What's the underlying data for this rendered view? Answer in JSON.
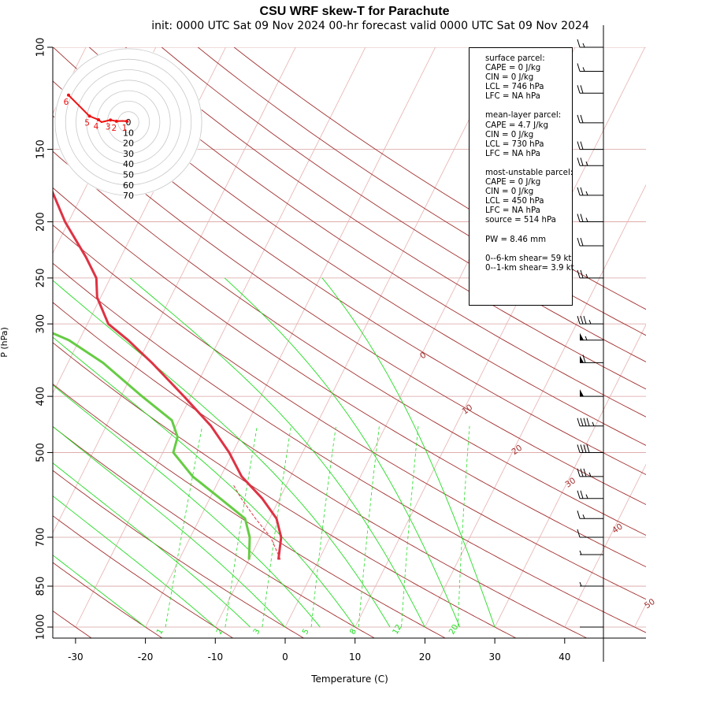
{
  "title": "CSU WRF skew-T for Parachute",
  "subtitle": "init: 0000 UTC Sat 09 Nov 2024    00-hr forecast valid 0000 UTC Sat 09 Nov 2024",
  "info": {
    "surface": [
      "surface parcel:",
      "CAPE = 0 J/kg",
      "CIN = 0 J/kg",
      "LCL = 746 hPa",
      "LFC = NA hPa"
    ],
    "mean_layer": [
      "mean-layer parcel:",
      "CAPE = 4.7 J/kg",
      "CIN = 0 J/kg",
      "LCL = 730 hPa",
      "LFC = NA hPa"
    ],
    "most_unstable": [
      "most-unstable parcel:",
      "CAPE = 0 J/kg",
      "CIN = 0 J/kg",
      "LCL = 450 hPa",
      "LFC = NA hPa",
      "source = 514 hPa"
    ],
    "pw": "PW =  8.46 mm",
    "shear": [
      "0--6-km shear= 59 kt",
      "0--1-km shear= 3.9 kt"
    ]
  },
  "chart_data": {
    "type": "line",
    "xlabel": "Temperature (C)",
    "ylabel": "P (hPa)",
    "xlim": [
      -33,
      44
    ],
    "ylim": [
      1000,
      100
    ],
    "y_scale": "log",
    "x_ticks": [
      -30,
      -20,
      -10,
      0,
      10,
      20,
      30,
      40
    ],
    "y_ticks": [
      100,
      150,
      200,
      250,
      300,
      400,
      500,
      700,
      850,
      1000
    ],
    "isotherm_labels": [
      "0",
      "10",
      "20",
      "30",
      "40",
      "50"
    ],
    "mixing_ratio_labels": [
      "1",
      "2",
      "3",
      "5",
      "8",
      "12",
      "20"
    ],
    "colors": {
      "temperature": "#dd3344",
      "dewpoint": "#66cc44",
      "parcel": "#dd3344",
      "isobar": "#d9a0a0",
      "isotherm": "#e8b0b0",
      "dry_adiabat": "#a33030",
      "moist_adiabat": "#22dd22",
      "mixing_ratio": "#22dd22",
      "hodograph": "#ee1111"
    },
    "series": [
      {
        "name": "temperature",
        "points": [
          [
            765,
            -5.8
          ],
          [
            700,
            -7.0
          ],
          [
            650,
            -9.0
          ],
          [
            600,
            -12.5
          ],
          [
            550,
            -17.0
          ],
          [
            500,
            -20.5
          ],
          [
            450,
            -25.0
          ],
          [
            400,
            -31.0
          ],
          [
            350,
            -38.0
          ],
          [
            320,
            -43.0
          ],
          [
            300,
            -47.0
          ],
          [
            270,
            -50.5
          ],
          [
            250,
            -52.0
          ],
          [
            230,
            -55.0
          ],
          [
            200,
            -60.5
          ],
          [
            180,
            -64.0
          ],
          [
            160,
            -68.0
          ],
          [
            145,
            -71.5
          ],
          [
            130,
            -73.0
          ],
          [
            120,
            -74.0
          ],
          [
            110,
            -77.0
          ],
          [
            105,
            -78.0
          ]
        ]
      },
      {
        "name": "dewpoint",
        "points": [
          [
            765,
            -10.0
          ],
          [
            700,
            -11.5
          ],
          [
            650,
            -13.5
          ],
          [
            600,
            -18.5
          ],
          [
            550,
            -24.0
          ],
          [
            500,
            -28.5
          ],
          [
            470,
            -29.0
          ],
          [
            440,
            -31.0
          ],
          [
            400,
            -37.0
          ],
          [
            350,
            -45.0
          ],
          [
            320,
            -51.5
          ],
          [
            300,
            -58.0
          ],
          [
            280,
            -68.0
          ],
          [
            265,
            -81.0
          ],
          [
            250,
            -76.0
          ],
          [
            230,
            -74.0
          ],
          [
            200,
            -75.0
          ],
          [
            180,
            -75.0
          ],
          [
            170,
            -76.0
          ],
          [
            150,
            -83.0
          ],
          [
            130,
            -89.0
          ],
          [
            120,
            -91.0
          ],
          [
            105,
            -98.0
          ]
        ]
      },
      {
        "name": "parcel",
        "points": [
          [
            765,
            -5.5
          ],
          [
            700,
            -8.5
          ],
          [
            650,
            -12.0
          ],
          [
            600,
            -15.5
          ],
          [
            570,
            -17.5
          ]
        ]
      }
    ],
    "wind_barbs": [
      {
        "p": 1000,
        "kt": 4
      },
      {
        "p": 850,
        "kt": 5
      },
      {
        "p": 750,
        "kt": 8
      },
      {
        "p": 700,
        "kt": 10
      },
      {
        "p": 650,
        "kt": 15
      },
      {
        "p": 600,
        "kt": 25
      },
      {
        "p": 550,
        "kt": 35
      },
      {
        "p": 500,
        "kt": 40
      },
      {
        "p": 450,
        "kt": 45
      },
      {
        "p": 400,
        "kt": 50
      },
      {
        "p": 350,
        "kt": 60
      },
      {
        "p": 320,
        "kt": 55
      },
      {
        "p": 300,
        "kt": 35
      },
      {
        "p": 250,
        "kt": 25
      },
      {
        "p": 220,
        "kt": 20
      },
      {
        "p": 200,
        "kt": 25
      },
      {
        "p": 180,
        "kt": 25
      },
      {
        "p": 160,
        "kt": 25
      },
      {
        "p": 150,
        "kt": 20
      },
      {
        "p": 135,
        "kt": 20
      },
      {
        "p": 120,
        "kt": 20
      },
      {
        "p": 110,
        "kt": 15
      },
      {
        "p": 100,
        "kt": 15
      }
    ],
    "hodograph": {
      "ring_labels": [
        "0",
        "10",
        "20",
        "30",
        "40",
        "50",
        "60",
        "70"
      ],
      "point_labels": [
        "1",
        "2",
        "3",
        "4",
        "5",
        "6"
      ],
      "points": [
        [
          0,
          0
        ],
        [
          -0.5,
          0.3
        ],
        [
          -2,
          0.4
        ],
        [
          -4,
          0.3
        ],
        [
          -6,
          0.7
        ],
        [
          -9,
          0
        ],
        [
          -10,
          0.8
        ],
        [
          -13,
          2
        ],
        [
          -20,
          9
        ]
      ]
    }
  }
}
